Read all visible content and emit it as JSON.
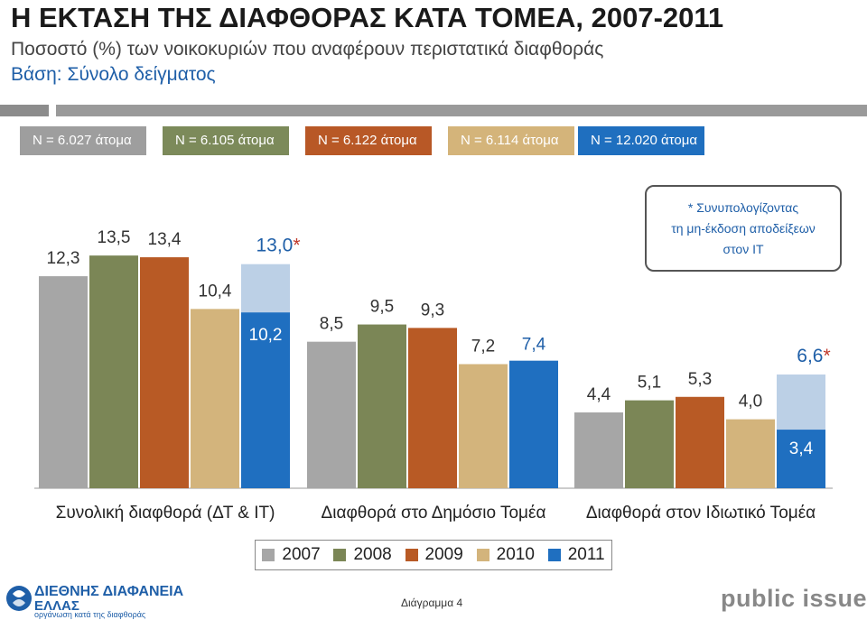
{
  "header": {
    "title": "Η ΕΚΤΑΣΗ ΤΗΣ ΔΙΑΦΘΟΡΑΣ ΚΑΤΑ ΤΟΜΕΑ, 2007-2011",
    "subtitle": "Ποσοστό (%) των νοικοκυριών που αναφέρουν περιστατικά διαφθοράς",
    "basis": "Βάση: Σύνολο δείγματος"
  },
  "samples": [
    {
      "label": "N = 6.027 άτομα",
      "color": "#9e9e9e"
    },
    {
      "label": "N = 6.105 άτομα",
      "color": "#7c8a5a"
    },
    {
      "label": "N = 6.122 άτομα",
      "color": "#b85826"
    },
    {
      "label": "N = 6.114 άτομα",
      "color": "#d4b47a"
    },
    {
      "label": "N = 12.020 άτομα",
      "color": "#1f6fbf"
    }
  ],
  "note": {
    "line1": "* Συνυπολογίζοντας",
    "line2": "τη μη-έκδοση αποδείξεων",
    "line3": "στον ΙΤ"
  },
  "chart_data": {
    "type": "bar",
    "categories": [
      "Συνολική διαφθορά (ΔΤ & ΙΤ)",
      "Διαφθορά στο Δημόσιο Τομέα",
      "Διαφθορά στον Ιδιωτικό Τομέα"
    ],
    "series": [
      {
        "name": "2007",
        "color": "#a6a6a6",
        "values": [
          12.3,
          8.5,
          4.4
        ],
        "labels": [
          "12,3",
          "8,5",
          "4,4"
        ]
      },
      {
        "name": "2008",
        "color": "#7b8656",
        "values": [
          13.5,
          9.5,
          5.1
        ],
        "labels": [
          "13,5",
          "9,5",
          "5,1"
        ]
      },
      {
        "name": "2009",
        "color": "#b85a25",
        "values": [
          13.4,
          9.3,
          5.3
        ],
        "labels": [
          "13,4",
          "9,3",
          "5,3"
        ]
      },
      {
        "name": "2010",
        "color": "#d3b47c",
        "values": [
          10.4,
          7.2,
          4.0
        ],
        "labels": [
          "10,4",
          "7,2",
          "4,0"
        ]
      },
      {
        "name": "2011",
        "color": "#1f6fc0",
        "values": [
          10.2,
          7.4,
          3.4
        ],
        "labels": [
          "10,2",
          "7,4",
          "3,4"
        ]
      }
    ],
    "extended": [
      {
        "category_index": 0,
        "series": "2011",
        "value": 13.0,
        "label": "13,0",
        "star": "*",
        "color": "#bcd0e6"
      },
      {
        "category_index": 2,
        "series": "2011",
        "value": 6.6,
        "label": "6,6",
        "star": "*",
        "color": "#bcd0e6"
      }
    ],
    "ylim": [
      0,
      15
    ],
    "legend_position": "bottom",
    "grid": false
  },
  "footer": {
    "org_line1": "ΔΙΕΘΝΗΣ ΔΙΑΦΑΝΕΙΑ",
    "org_line2": "ΕΛΛΑΣ",
    "org_tagline": "οργάνωση κατά της διαφθοράς",
    "diagram_label": "Διάγραμμα 4",
    "brand": "public issue"
  }
}
